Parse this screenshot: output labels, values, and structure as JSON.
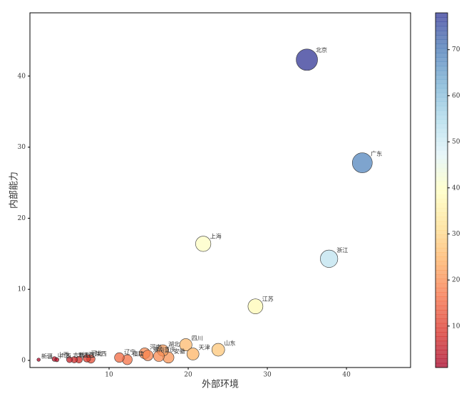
{
  "chart_data": {
    "type": "scatter",
    "xlabel": "外部环境",
    "ylabel": "内部能力",
    "labels": [
      "北京",
      "广东",
      "浙江",
      "上海",
      "江苏",
      "山东",
      "四川",
      "天津",
      "安徽",
      "湖北",
      "重庆",
      "河南",
      "湖南",
      "福建",
      "辽宁",
      "陕西",
      "河北",
      "江西",
      "黑龙江",
      "吉林",
      "山西",
      "广西",
      "新疆"
    ],
    "x": [
      35.0,
      42.0,
      37.8,
      21.9,
      28.5,
      23.8,
      19.7,
      20.6,
      17.5,
      16.8,
      16.3,
      14.5,
      14.9,
      12.3,
      11.3,
      7.7,
      7.2,
      6.2,
      5.6,
      5.0,
      3.1,
      3.4,
      1.1
    ],
    "y": [
      42.3,
      27.8,
      14.3,
      16.4,
      7.6,
      1.5,
      2.2,
      0.9,
      0.4,
      1.4,
      0.6,
      1.0,
      0.7,
      0.1,
      0.4,
      0.2,
      0.3,
      0.1,
      0.1,
      0.1,
      0.2,
      0.1,
      0.1
    ],
    "sizes": [
      78,
      68,
      52,
      40,
      38,
      28,
      26,
      25,
      21,
      22,
      20,
      20,
      19,
      17,
      16,
      12,
      10,
      8,
      7,
      6,
      4,
      3,
      2
    ],
    "colormap": "RdYlBu",
    "xlim": [
      0,
      48.1
    ],
    "ylim": [
      -1,
      48.9
    ],
    "xticks": [
      10,
      20,
      30,
      40
    ],
    "yticks": [
      0,
      10,
      20,
      30,
      40
    ],
    "clim": [
      1,
      78
    ],
    "cticks": [
      10,
      20,
      30,
      40,
      50,
      60,
      70
    ]
  }
}
